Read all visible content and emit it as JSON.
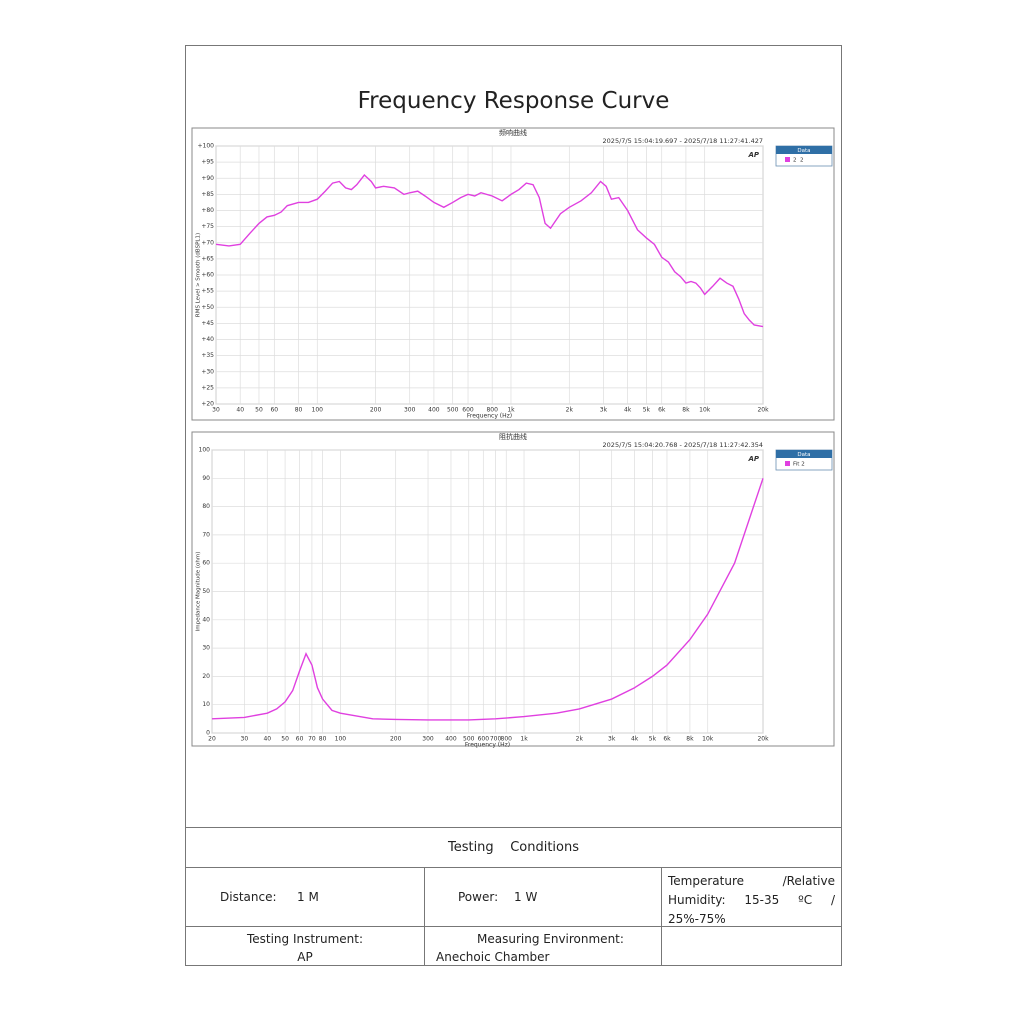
{
  "title": "Frequency Response Curve",
  "chart_data": [
    {
      "type": "line",
      "title": "频响曲线",
      "subtitle": "2025/7/5 15:04:19.697 - 2025/7/18 11:27:41.427",
      "x_label": "Frequency (Hz)",
      "y_label": "RMS Level > Smooth (dBSPL1)",
      "log_x": true,
      "grid": true,
      "legend_title": "Data",
      "legend": "upper right",
      "xlim": [
        30,
        20000
      ],
      "ylim": [
        20,
        100
      ],
      "xticks": [
        30,
        40,
        50,
        60,
        80,
        100,
        200,
        300,
        400,
        500,
        600,
        800,
        {
          "value": 1000,
          "label": "1k"
        },
        {
          "value": 2000,
          "label": "2k"
        },
        {
          "value": 3000,
          "label": "3k"
        },
        {
          "value": 4000,
          "label": "4k"
        },
        {
          "value": 5000,
          "label": "5k"
        },
        {
          "value": 6000,
          "label": "6k"
        },
        {
          "value": 8000,
          "label": "8k"
        },
        {
          "value": 10000,
          "label": "10k"
        },
        {
          "value": 20000,
          "label": "20k"
        }
      ],
      "yticks": [
        {
          "value": 20,
          "label": "+20"
        },
        {
          "value": 25,
          "label": "+25"
        },
        {
          "value": 30,
          "label": "+30"
        },
        {
          "value": 35,
          "label": "+35"
        },
        {
          "value": 40,
          "label": "+40"
        },
        {
          "value": 45,
          "label": "+45"
        },
        {
          "value": 50,
          "label": "+50"
        },
        {
          "value": 55,
          "label": "+55"
        },
        {
          "value": 60,
          "label": "+60"
        },
        {
          "value": 65,
          "label": "+65"
        },
        {
          "value": 70,
          "label": "+70"
        },
        {
          "value": 75,
          "label": "+75"
        },
        {
          "value": 80,
          "label": "+80"
        },
        {
          "value": 85,
          "label": "+85"
        },
        {
          "value": 90,
          "label": "+90"
        },
        {
          "value": 95,
          "label": "+95"
        },
        {
          "value": 100,
          "label": "+100"
        }
      ],
      "x": [
        30,
        35,
        40,
        45,
        50,
        55,
        60,
        65,
        70,
        80,
        90,
        100,
        110,
        120,
        130,
        140,
        150,
        160,
        175,
        190,
        200,
        220,
        250,
        280,
        300,
        330,
        360,
        400,
        450,
        500,
        550,
        600,
        650,
        700,
        800,
        900,
        1000,
        1100,
        1200,
        1300,
        1400,
        1500,
        1600,
        1800,
        2000,
        2300,
        2600,
        2900,
        3100,
        3300,
        3600,
        4000,
        4500,
        5000,
        5500,
        6000,
        6500,
        7000,
        7500,
        8000,
        8500,
        9000,
        9500,
        10000,
        11000,
        12000,
        13000,
        14000,
        15000,
        16000,
        17000,
        18000,
        20000
      ],
      "series": [
        {
          "name": "2  2",
          "color": "#e040e0",
          "values": [
            69.5,
            69,
            69.5,
            73,
            76,
            78,
            78.5,
            79.5,
            81.5,
            82.5,
            82.5,
            83.5,
            86,
            88.5,
            89,
            87,
            86.5,
            88,
            91,
            89,
            87,
            87.5,
            87,
            85,
            85.5,
            86,
            84.5,
            82.5,
            81,
            82.5,
            84,
            85,
            84.5,
            85.5,
            84.5,
            83,
            85,
            86.5,
            88.5,
            88,
            84,
            76,
            74.5,
            79,
            81,
            83,
            85.5,
            89,
            87.5,
            83.5,
            84,
            80,
            74,
            71.5,
            69.5,
            65.5,
            64,
            61,
            59.5,
            57.5,
            58,
            57.5,
            56,
            54,
            56.5,
            59,
            57.5,
            56.5,
            52.5,
            48,
            46,
            44.5,
            44
          ]
        }
      ]
    },
    {
      "type": "line",
      "title": "阻抗曲线",
      "subtitle": "2025/7/5 15:04:20.768 - 2025/7/18 11:27:42.354",
      "x_label": "Frequency (Hz)",
      "y_label": "Impedance Magnitude (ohm)",
      "log_x": true,
      "grid": true,
      "legend_title": "Data",
      "legend": "upper right",
      "xlim": [
        20,
        20000
      ],
      "ylim": [
        0,
        100
      ],
      "xticks": [
        20,
        30,
        40,
        50,
        60,
        70,
        80,
        100,
        200,
        300,
        400,
        500,
        600,
        700,
        800,
        {
          "value": 1000,
          "label": "1k"
        },
        {
          "value": 2000,
          "label": "2k"
        },
        {
          "value": 3000,
          "label": "3k"
        },
        {
          "value": 4000,
          "label": "4k"
        },
        {
          "value": 5000,
          "label": "5k"
        },
        {
          "value": 6000,
          "label": "6k"
        },
        {
          "value": 8000,
          "label": "8k"
        },
        {
          "value": 10000,
          "label": "10k"
        },
        {
          "value": 20000,
          "label": "20k"
        }
      ],
      "yticks": [
        0,
        10,
        20,
        30,
        40,
        50,
        60,
        70,
        80,
        90,
        100
      ],
      "x": [
        20,
        30,
        40,
        45,
        50,
        55,
        60,
        65,
        70,
        75,
        80,
        90,
        100,
        150,
        200,
        300,
        500,
        700,
        1000,
        1500,
        2000,
        3000,
        4000,
        5000,
        6000,
        8000,
        10000,
        14000,
        20000
      ],
      "series": [
        {
          "name": "Fit 2",
          "color": "#e040e0",
          "values": [
            5,
            5.5,
            7,
            8.5,
            11,
            15,
            22,
            28,
            24,
            16,
            12,
            8,
            7,
            5,
            4.8,
            4.6,
            4.6,
            5,
            5.8,
            7,
            8.5,
            12,
            16,
            20,
            24,
            33,
            42,
            60,
            90
          ]
        }
      ]
    }
  ],
  "table": {
    "header": "Testing    Conditions",
    "rows": [
      [
        {
          "label": "Distance:",
          "value": "1 M"
        },
        {
          "label": "Power:",
          "value": "1 W"
        },
        {
          "label": "Temperature /Relative Humidity: 15-35 ºC / 25%-75%"
        }
      ],
      [
        {
          "label": "Testing Instrument:",
          "value": "AP"
        },
        {
          "label": "Measuring Environment:",
          "value": "Anechoic Chamber"
        }
      ]
    ]
  }
}
